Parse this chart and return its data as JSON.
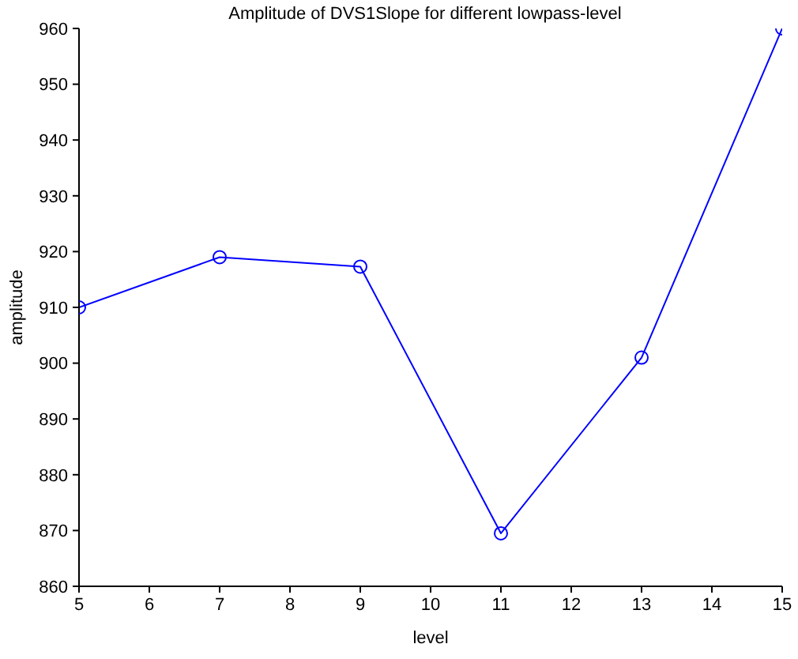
{
  "chart_data": {
    "type": "line",
    "title": "Amplitude of DVS1Slope for different lowpass-level",
    "xlabel": "level",
    "ylabel": "amplitude",
    "x": [
      5,
      7,
      9,
      11,
      13,
      15
    ],
    "series": [
      {
        "color": "#0000ff",
        "values": [
          910,
          919,
          917.3,
          869.5,
          901,
          960
        ]
      }
    ],
    "xlim": [
      5,
      15
    ],
    "xticks": [
      5,
      6,
      7,
      8,
      9,
      10,
      11,
      12,
      13,
      14,
      15
    ],
    "ylim": [
      860,
      960
    ],
    "yticks": [
      860,
      870,
      880,
      890,
      900,
      910,
      920,
      930,
      940,
      950,
      960
    ],
    "grid": false,
    "legend": false,
    "marker": "circle",
    "line_style": "solid"
  }
}
